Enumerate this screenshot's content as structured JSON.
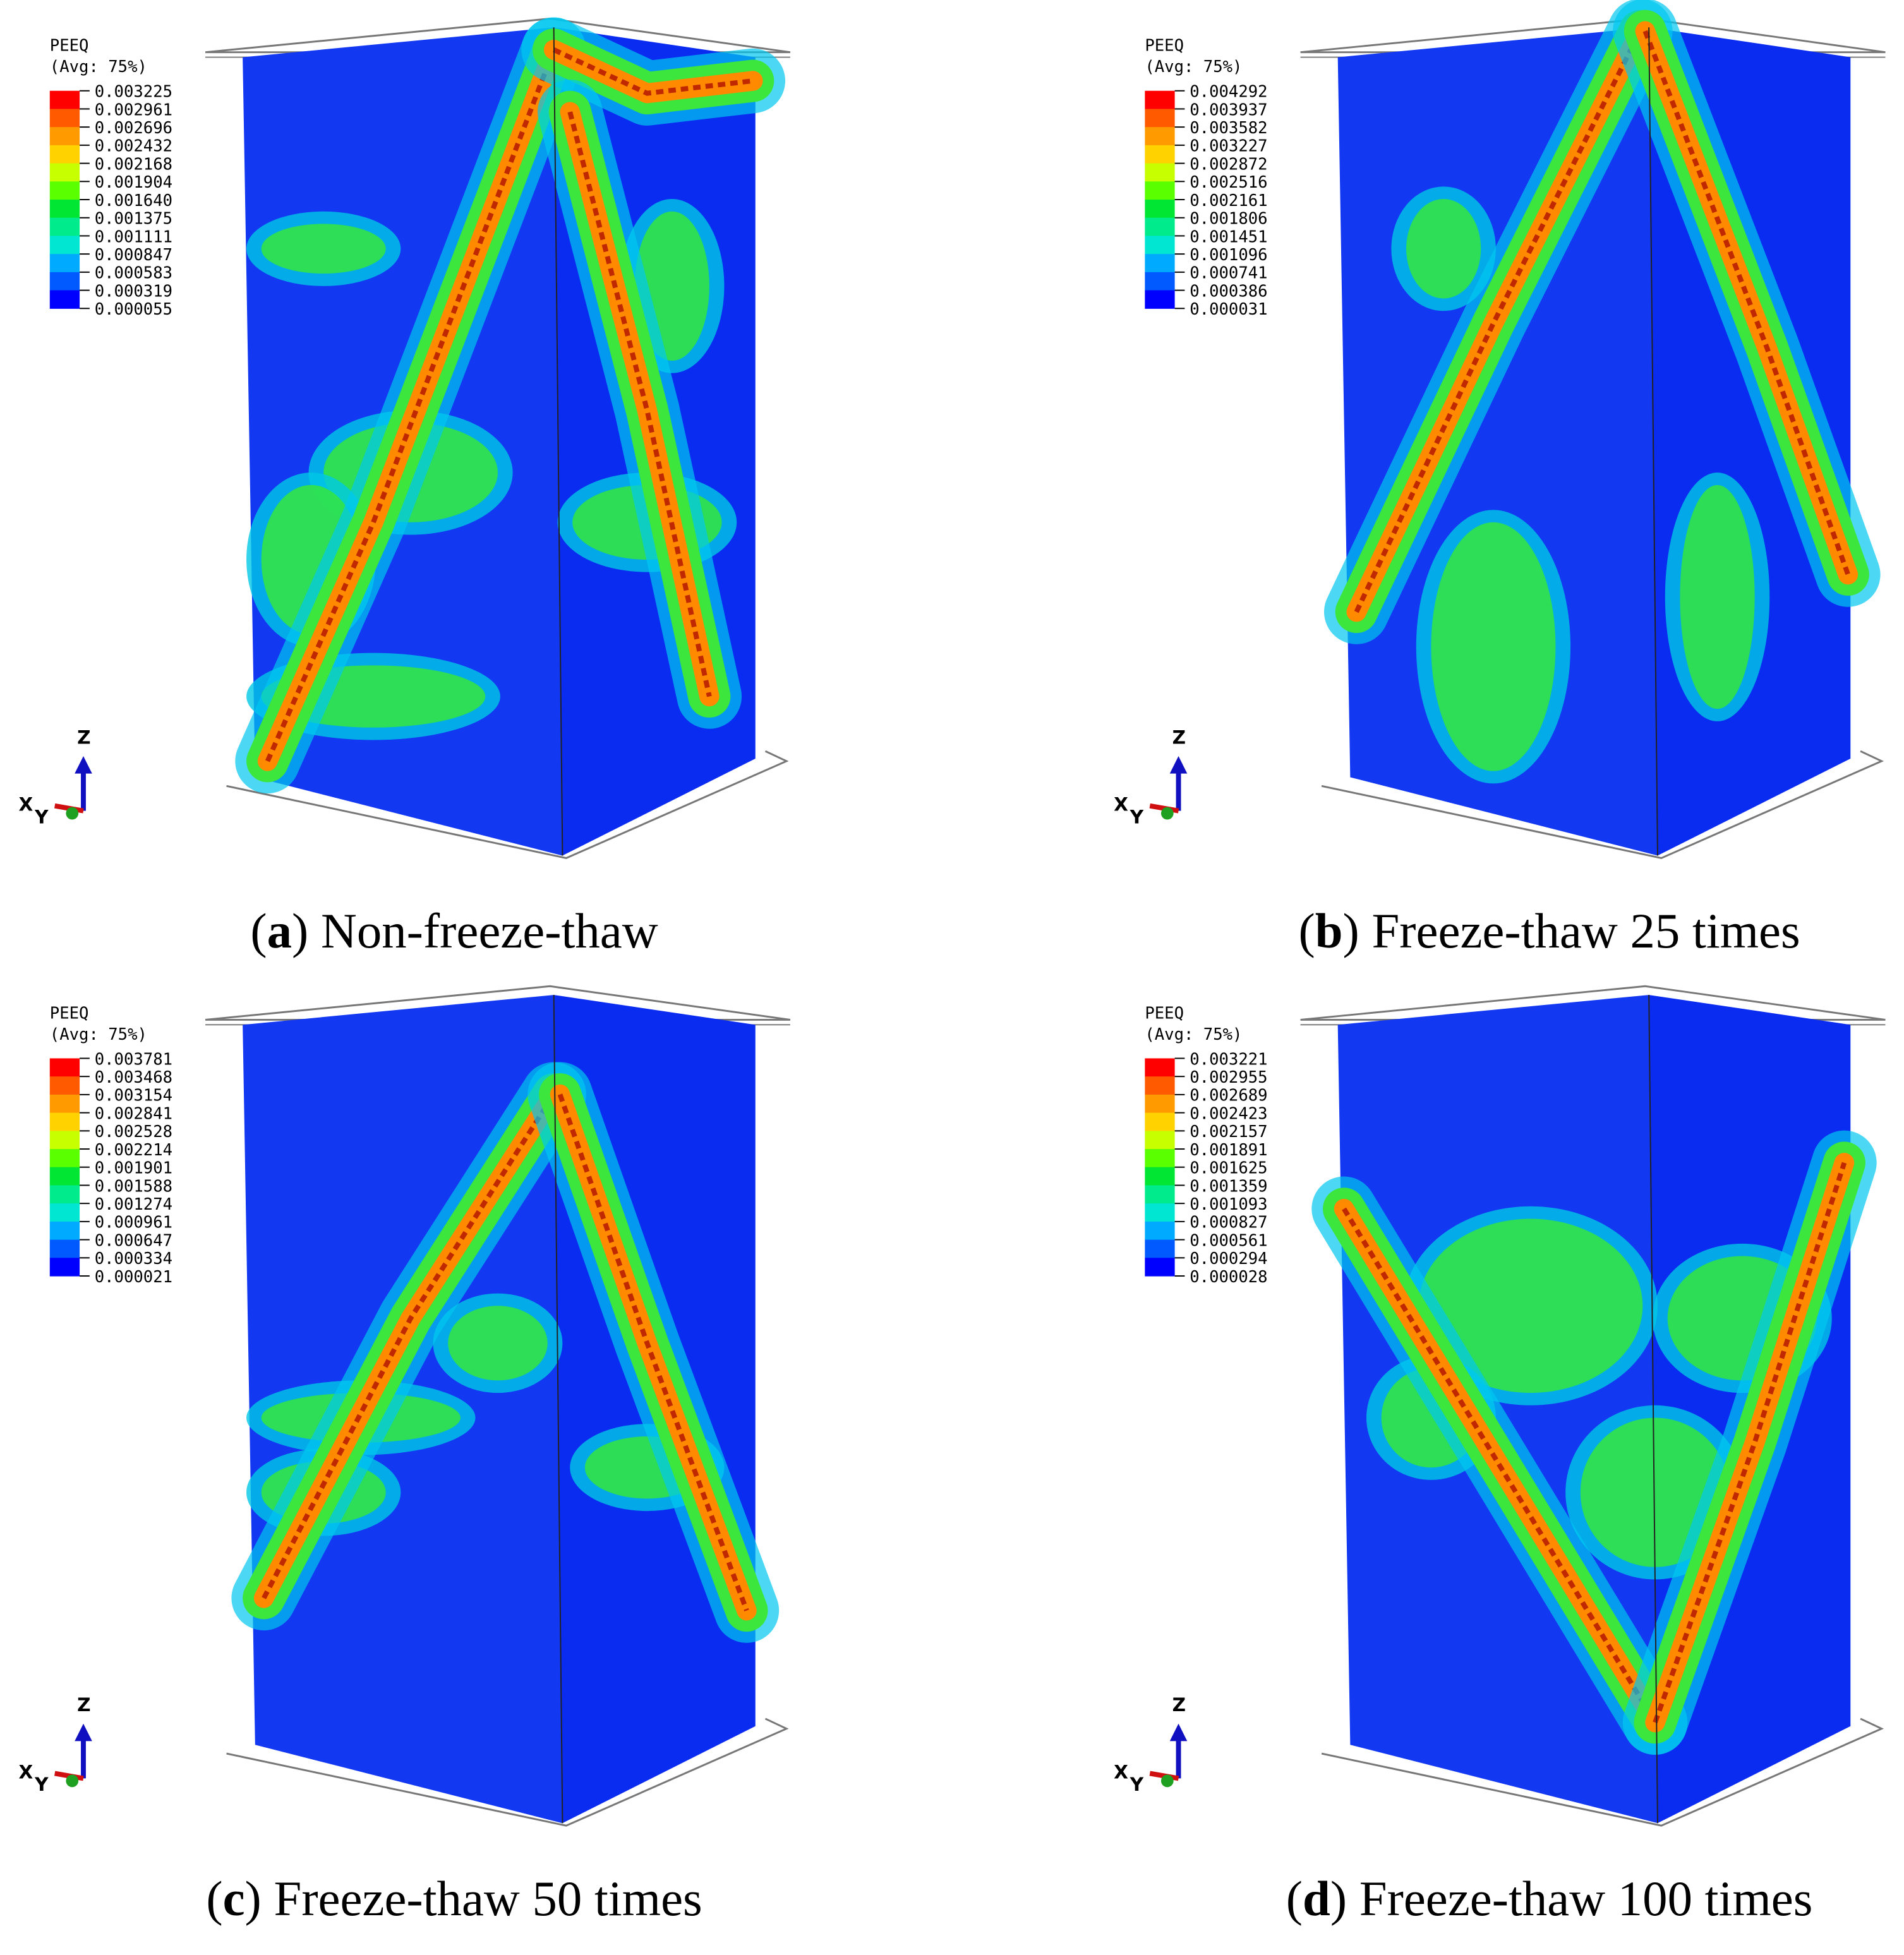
{
  "colormap": [
    "#ff0000",
    "#ff5a00",
    "#ff9b00",
    "#ffd200",
    "#c8ff00",
    "#5aff00",
    "#00e632",
    "#00eb8c",
    "#00e6d2",
    "#00aaff",
    "#005aff",
    "#0000ff"
  ],
  "panels": [
    {
      "legend": {
        "title": "PEEQ",
        "subtitle": "(Avg: 75%)",
        "values": [
          "0.003225",
          "0.002961",
          "0.002696",
          "0.002432",
          "0.002168",
          "0.001904",
          "0.001640",
          "0.001375",
          "0.001111",
          "0.000847",
          "0.000583",
          "0.000319",
          "0.000055"
        ]
      },
      "triad": {
        "z": "Z",
        "x": "X",
        "y": "Y"
      },
      "caption": [
        "(",
        "a",
        ") Non-freeze-thaw"
      ]
    },
    {
      "legend": {
        "title": "PEEQ",
        "subtitle": "(Avg: 75%)",
        "values": [
          "0.004292",
          "0.003937",
          "0.003582",
          "0.003227",
          "0.002872",
          "0.002516",
          "0.002161",
          "0.001806",
          "0.001451",
          "0.001096",
          "0.000741",
          "0.000386",
          "0.000031"
        ]
      },
      "triad": {
        "z": "Z",
        "x": "X",
        "y": "Y"
      },
      "caption": [
        "(",
        "b",
        ") Freeze-thaw 25 times"
      ]
    },
    {
      "legend": {
        "title": "PEEQ",
        "subtitle": "(Avg: 75%)",
        "values": [
          "0.003781",
          "0.003468",
          "0.003154",
          "0.002841",
          "0.002528",
          "0.002214",
          "0.001901",
          "0.001588",
          "0.001274",
          "0.000961",
          "0.000647",
          "0.000334",
          "0.000021"
        ]
      },
      "triad": {
        "z": "Z",
        "x": "X",
        "y": "Y"
      },
      "caption": [
        "(",
        "c",
        ") Freeze-thaw 50 times"
      ]
    },
    {
      "legend": {
        "title": "PEEQ",
        "subtitle": "(Avg: 75%)",
        "values": [
          "0.003221",
          "0.002955",
          "0.002689",
          "0.002423",
          "0.002157",
          "0.001891",
          "0.001625",
          "0.001359",
          "0.001093",
          "0.000827",
          "0.000561",
          "0.000294",
          "0.000028"
        ]
      },
      "triad": {
        "z": "Z",
        "x": "X",
        "y": "Y"
      },
      "caption": [
        "(",
        "d",
        ") Freeze-thaw 100 times"
      ]
    }
  ]
}
